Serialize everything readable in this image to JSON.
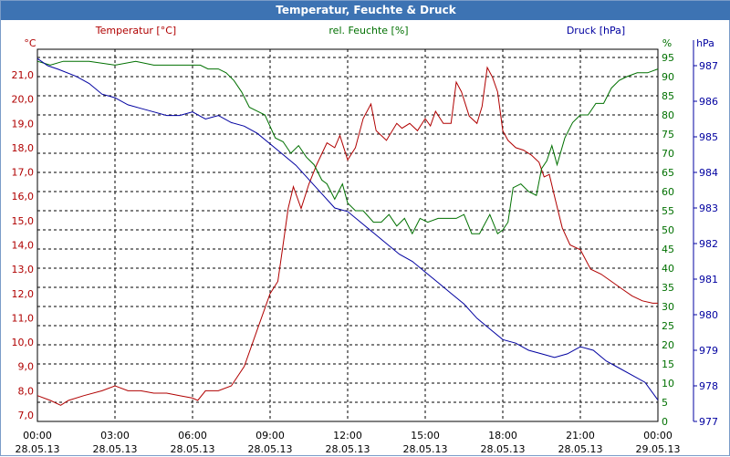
{
  "window": {
    "title": "Temperatur, Feuchte & Druck"
  },
  "colors": {
    "temperature": "#b00000",
    "humidity": "#007000",
    "pressure": "#0000a0",
    "grid": "#000000",
    "axis_text": "#000000"
  },
  "chart_data": {
    "type": "line",
    "title": "Temperatur, Feuchte & Druck",
    "grid": true,
    "x_ticks": [
      {
        "time": "00:00",
        "date": "28.05.13"
      },
      {
        "time": "03:00",
        "date": "28.05.13"
      },
      {
        "time": "06:00",
        "date": "28.05.13"
      },
      {
        "time": "09:00",
        "date": "28.05.13"
      },
      {
        "time": "12:00",
        "date": "28.05.13"
      },
      {
        "time": "15:00",
        "date": "28.05.13"
      },
      {
        "time": "18:00",
        "date": "28.05.13"
      },
      {
        "time": "21:00",
        "date": "28.05.13"
      },
      {
        "time": "00:00",
        "date": "29.05.13"
      }
    ],
    "x_range_hours": [
      0,
      24
    ],
    "axes": {
      "temperature": {
        "label": "Temperatur [°C]",
        "unit": "°C",
        "range": [
          7.0,
          21.0
        ],
        "ticks": [
          "7,0",
          "8,0",
          "9,0",
          "10,0",
          "11,0",
          "12,0",
          "13,0",
          "14,0",
          "15,0",
          "16,0",
          "17,0",
          "18,0",
          "19,0",
          "20,0",
          "21,0"
        ]
      },
      "humidity": {
        "label": "rel. Feuchte [%]",
        "unit": "%",
        "range": [
          0,
          95
        ],
        "ticks": [
          "0",
          "5",
          "10",
          "15",
          "20",
          "25",
          "30",
          "35",
          "40",
          "45",
          "50",
          "55",
          "60",
          "65",
          "70",
          "75",
          "80",
          "85",
          "90",
          "95"
        ]
      },
      "pressure": {
        "label": "Druck [hPa]",
        "unit": "hPa",
        "range": [
          977,
          987
        ],
        "ticks": [
          "977",
          "978",
          "979",
          "980",
          "981",
          "982",
          "983",
          "984",
          "985",
          "986",
          "987"
        ]
      }
    },
    "series": [
      {
        "name": "Temperatur [°C]",
        "axis": "temperature",
        "color": "#b00000",
        "x": [
          0,
          0.5,
          0.9,
          1.2,
          1.8,
          2.5,
          3.0,
          3.5,
          4.0,
          4.5,
          5.0,
          5.5,
          6.0,
          6.2,
          6.5,
          7.0,
          7.5,
          8.0,
          8.5,
          9.0,
          9.3,
          9.5,
          9.7,
          9.9,
          10.2,
          10.5,
          10.8,
          11.2,
          11.5,
          11.7,
          12.0,
          12.3,
          12.6,
          12.9,
          13.1,
          13.5,
          13.9,
          14.1,
          14.4,
          14.7,
          15.0,
          15.2,
          15.4,
          15.7,
          16.0,
          16.2,
          16.4,
          16.7,
          17.0,
          17.2,
          17.4,
          17.6,
          17.8,
          18.0,
          18.2,
          18.5,
          18.8,
          19.1,
          19.4,
          19.6,
          19.8,
          20.0,
          20.3,
          20.6,
          21.0,
          21.4,
          21.8,
          22.2,
          22.6,
          23.0,
          23.4,
          23.8,
          24.0
        ],
        "values": [
          7.8,
          7.6,
          7.4,
          7.6,
          7.8,
          8.0,
          8.2,
          8.0,
          8.0,
          7.9,
          7.9,
          7.8,
          7.7,
          7.6,
          8.0,
          8.0,
          8.2,
          9.0,
          10.5,
          12.0,
          12.5,
          14.0,
          15.5,
          16.4,
          15.5,
          16.5,
          17.3,
          18.2,
          18.0,
          18.5,
          17.5,
          18.0,
          19.2,
          19.8,
          18.7,
          18.3,
          19.0,
          18.8,
          19.0,
          18.7,
          19.2,
          18.9,
          19.5,
          19.0,
          19.0,
          20.7,
          20.3,
          19.3,
          19.0,
          19.7,
          21.3,
          20.9,
          20.3,
          18.7,
          18.3,
          18.0,
          17.9,
          17.7,
          17.4,
          16.8,
          16.9,
          16.0,
          14.7,
          14.0,
          13.8,
          13.0,
          12.8,
          12.5,
          12.2,
          11.9,
          11.7,
          11.6,
          11.6
        ]
      },
      {
        "name": "rel. Feuchte [%]",
        "axis": "humidity",
        "color": "#007000",
        "x": [
          0,
          0.5,
          1.0,
          2.0,
          3.0,
          3.8,
          4.5,
          5.5,
          6.0,
          6.3,
          6.6,
          7.0,
          7.3,
          7.6,
          7.9,
          8.2,
          8.5,
          8.8,
          9.0,
          9.2,
          9.5,
          9.8,
          10.1,
          10.4,
          10.7,
          11.0,
          11.2,
          11.5,
          11.8,
          12.0,
          12.3,
          12.6,
          13.0,
          13.3,
          13.6,
          13.9,
          14.2,
          14.5,
          14.8,
          15.1,
          15.5,
          15.9,
          16.2,
          16.5,
          16.8,
          17.1,
          17.5,
          17.8,
          18.0,
          18.2,
          18.4,
          18.7,
          19.0,
          19.3,
          19.5,
          19.7,
          19.9,
          20.1,
          20.4,
          20.7,
          21.0,
          21.3,
          21.6,
          21.9,
          22.2,
          22.5,
          22.8,
          23.2,
          23.6,
          24.0
        ],
        "values": [
          94,
          93,
          94,
          94,
          93,
          94,
          93,
          93,
          93,
          93,
          92,
          92,
          91,
          89,
          86,
          82,
          81,
          80,
          77,
          74,
          73,
          70,
          72,
          69,
          67,
          63,
          62,
          58,
          62,
          57,
          55,
          55,
          52,
          52,
          54,
          51,
          53,
          49,
          53,
          52,
          53,
          53,
          53,
          54,
          49,
          49,
          54,
          49,
          50,
          52,
          61,
          62,
          60,
          59,
          66,
          68,
          72,
          67,
          74,
          78,
          80,
          80,
          83,
          83,
          87,
          89,
          90,
          91,
          91,
          92
        ]
      },
      {
        "name": "Druck [hPa]",
        "axis": "pressure",
        "color": "#0000a0",
        "x": [
          0,
          0.4,
          0.8,
          1.5,
          2.0,
          2.5,
          3.0,
          3.5,
          4.0,
          4.5,
          5.0,
          5.5,
          6.0,
          6.5,
          7.0,
          7.5,
          8.0,
          8.5,
          9.0,
          9.5,
          10.0,
          10.5,
          11.0,
          11.5,
          12.0,
          12.5,
          13.0,
          13.5,
          14.0,
          14.5,
          15.0,
          15.5,
          16.0,
          16.5,
          17.0,
          17.5,
          18.0,
          18.5,
          19.0,
          19.5,
          20.0,
          20.5,
          21.0,
          21.5,
          22.0,
          22.5,
          23.0,
          23.5,
          24.0
        ],
        "values": [
          987.2,
          987.0,
          986.9,
          986.7,
          986.5,
          986.2,
          986.1,
          985.9,
          985.8,
          985.7,
          985.6,
          985.6,
          985.7,
          985.5,
          985.6,
          985.4,
          985.3,
          985.1,
          984.8,
          984.5,
          984.2,
          983.8,
          983.4,
          983.0,
          982.9,
          982.6,
          982.3,
          982.0,
          981.7,
          981.5,
          981.2,
          980.9,
          980.6,
          980.3,
          979.9,
          979.6,
          979.3,
          979.2,
          979.0,
          978.9,
          978.8,
          978.9,
          979.1,
          979.0,
          978.7,
          978.5,
          978.3,
          978.1,
          977.6
        ]
      }
    ]
  }
}
